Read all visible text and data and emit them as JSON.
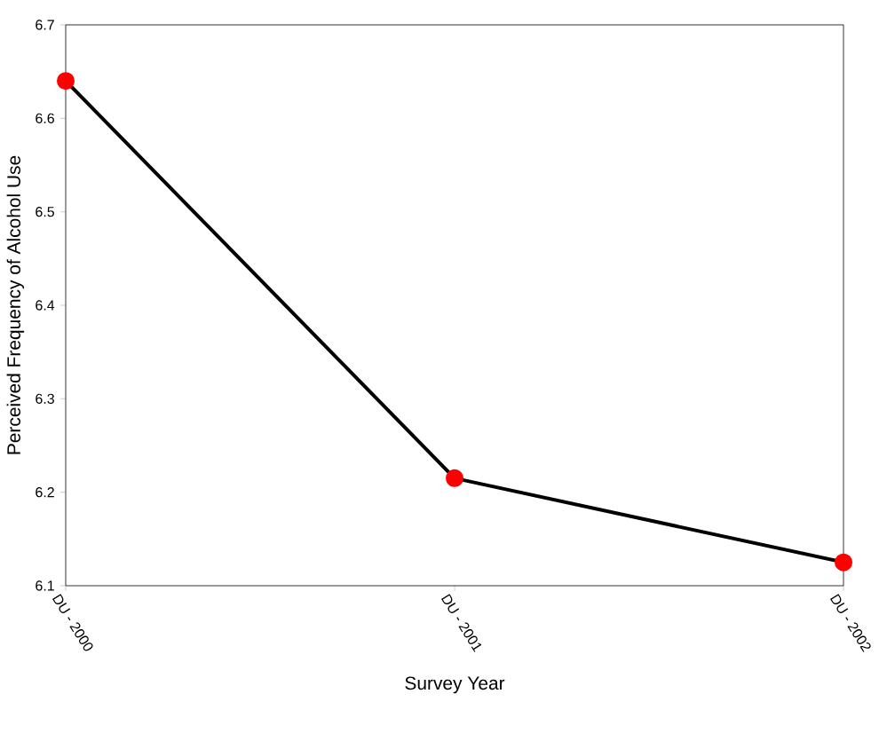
{
  "chart_data": {
    "type": "line",
    "xlabel": "Survey Year",
    "ylabel": "Perceived Frequency of Alcohol Use",
    "categories": [
      "DU - 2000",
      "DU - 2001",
      "DU - 2002"
    ],
    "series": [
      {
        "color": "#000000",
        "values": [
          6.64,
          6.215,
          6.125
        ]
      }
    ],
    "ylim": [
      6.1,
      6.7
    ],
    "yticks": [
      6.1,
      6.2,
      6.3,
      6.4,
      6.5,
      6.6,
      6.7
    ],
    "grid": false,
    "marker": "circle",
    "line_style": "solid"
  }
}
